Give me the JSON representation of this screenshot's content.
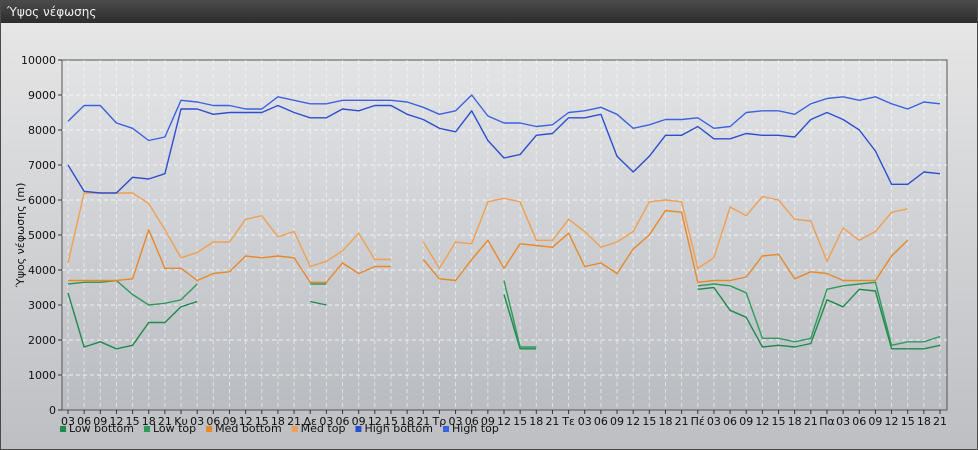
{
  "window": {
    "title": "Ύψος νέφωσης"
  },
  "chart_data": {
    "type": "line",
    "title": "",
    "xlabel": "",
    "ylabel": "Ύψος νέφωσης (m)",
    "ylim": [
      0,
      10000
    ],
    "yticks": [
      0,
      1000,
      2000,
      3000,
      4000,
      5000,
      6000,
      7000,
      8000,
      9000,
      10000
    ],
    "grid": true,
    "legend_position": "bottom-left",
    "categories": [
      "03",
      "06",
      "09",
      "12",
      "15",
      "18",
      "21",
      "Κυ",
      "03",
      "06",
      "09",
      "12",
      "15",
      "18",
      "21",
      "Δε",
      "03",
      "06",
      "09",
      "12",
      "15",
      "18",
      "21",
      "Τρ",
      "03",
      "06",
      "09",
      "12",
      "15",
      "18",
      "21",
      "Τε",
      "03",
      "06",
      "09",
      "12",
      "15",
      "18",
      "21",
      "Πέ",
      "03",
      "06",
      "09",
      "12",
      "15",
      "18",
      "21",
      "Πα",
      "03",
      "06",
      "09",
      "12",
      "15",
      "18",
      "21"
    ],
    "series": [
      {
        "name": "Low bottom",
        "color": "#1e8a4c",
        "values": [
          3350,
          1800,
          1950,
          1750,
          1850,
          2500,
          2500,
          2950,
          3100,
          null,
          null,
          null,
          null,
          null,
          null,
          3100,
          3000,
          null,
          null,
          null,
          null,
          null,
          null,
          null,
          null,
          null,
          null,
          3300,
          1750,
          1750,
          null,
          null,
          null,
          null,
          null,
          null,
          null,
          null,
          null,
          3450,
          3500,
          2850,
          2650,
          1800,
          1850,
          1800,
          1900,
          3150,
          2950,
          3450,
          3400,
          1750,
          1750,
          1750,
          1850
        ]
      },
      {
        "name": "Low top",
        "color": "#2e9a5a",
        "values": [
          3600,
          3650,
          3650,
          3700,
          3300,
          3000,
          3050,
          3150,
          3600,
          null,
          null,
          null,
          null,
          null,
          null,
          3600,
          3600,
          null,
          null,
          null,
          null,
          null,
          null,
          null,
          null,
          null,
          null,
          3700,
          1800,
          1800,
          null,
          null,
          null,
          null,
          null,
          null,
          null,
          null,
          null,
          3550,
          3600,
          3550,
          3350,
          2050,
          2050,
          1950,
          2050,
          3450,
          3550,
          3600,
          3650,
          1850,
          1950,
          1950,
          2100
        ]
      },
      {
        "name": "Med bottom",
        "color": "#e8882a",
        "values": [
          3700,
          3700,
          3700,
          3700,
          3750,
          5150,
          4050,
          4050,
          3700,
          3900,
          3950,
          4400,
          4350,
          4400,
          4350,
          3650,
          3650,
          4200,
          3900,
          4100,
          4100,
          null,
          4300,
          3750,
          3700,
          4300,
          4850,
          4050,
          4750,
          4700,
          4650,
          5050,
          4100,
          4200,
          3900,
          4600,
          5000,
          5700,
          5650,
          3650,
          3700,
          3700,
          3800,
          4400,
          4450,
          3750,
          3950,
          3900,
          3700,
          3700,
          3700,
          4400,
          4850,
          null,
          null
        ]
      },
      {
        "name": "Med top",
        "color": "#f0a050",
        "values": [
          4200,
          6200,
          6200,
          6200,
          6200,
          5900,
          5150,
          4350,
          4500,
          4800,
          4800,
          5450,
          5550,
          4950,
          5100,
          4100,
          4250,
          4550,
          5050,
          4300,
          4300,
          null,
          4800,
          4050,
          4800,
          4750,
          5950,
          6050,
          5950,
          4850,
          4850,
          5450,
          5100,
          4650,
          4800,
          5100,
          5950,
          6000,
          5950,
          4050,
          4350,
          5800,
          5550,
          6100,
          6000,
          5450,
          5400,
          4250,
          5200,
          4850,
          5100,
          5650,
          5750,
          null,
          null
        ]
      },
      {
        "name": "High bottom",
        "color": "#2a4fd0",
        "values": [
          7000,
          6250,
          6200,
          6200,
          6650,
          6600,
          6750,
          8600,
          8600,
          8450,
          8500,
          8500,
          8500,
          8700,
          8500,
          8350,
          8350,
          8600,
          8550,
          8700,
          8700,
          8450,
          8300,
          8050,
          7950,
          8550,
          7700,
          7200,
          7300,
          7850,
          7900,
          8350,
          8350,
          8450,
          7250,
          6800,
          7250,
          7850,
          7850,
          8100,
          7750,
          7750,
          7900,
          7850,
          7850,
          7800,
          8300,
          8500,
          8300,
          8000,
          7400,
          6450,
          6450,
          6800,
          6750
        ]
      },
      {
        "name": "High top",
        "color": "#3b62e0",
        "values": [
          8250,
          8700,
          8700,
          8200,
          8050,
          7700,
          7800,
          8850,
          8800,
          8700,
          8700,
          8600,
          8600,
          8950,
          8850,
          8750,
          8750,
          8850,
          8850,
          8850,
          8850,
          8800,
          8650,
          8450,
          8550,
          9000,
          8400,
          8200,
          8200,
          8100,
          8150,
          8500,
          8550,
          8650,
          8450,
          8050,
          8150,
          8300,
          8300,
          8350,
          8050,
          8100,
          8500,
          8550,
          8550,
          8450,
          8750,
          8900,
          8950,
          8850,
          8950,
          8750,
          8600,
          8800,
          8750
        ]
      }
    ]
  }
}
